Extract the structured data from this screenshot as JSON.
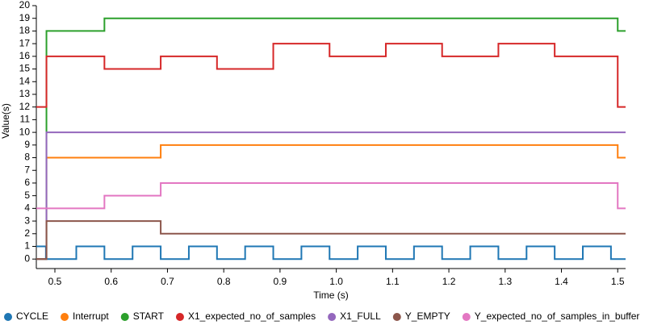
{
  "chart_data": {
    "type": "step",
    "xlabel": "Time (s)",
    "ylabel": "Value(s)",
    "xlim": [
      0.467,
      1.514
    ],
    "ylim": [
      -0.75,
      20
    ],
    "xticks": [
      0.5,
      0.6,
      0.7,
      0.8,
      0.9,
      {
        "value": 1,
        "label": "1.0"
      },
      1.1,
      1.2,
      1.3,
      1.4,
      1.5
    ],
    "yticks": [
      0,
      1,
      2,
      3,
      4,
      5,
      6,
      7,
      8,
      9,
      10,
      11,
      12,
      13,
      14,
      15,
      16,
      17,
      18,
      19,
      20
    ],
    "series": [
      {
        "name": "CYCLE",
        "color": "#1f77b4",
        "x": [
          0.467,
          0.484,
          0.538,
          0.588,
          0.638,
          0.688,
          0.738,
          0.788,
          0.838,
          0.888,
          0.938,
          0.988,
          1.038,
          1.088,
          1.138,
          1.188,
          1.238,
          1.288,
          1.338,
          1.388,
          1.438,
          1.488
        ],
        "values": [
          1,
          0,
          1,
          0,
          1,
          0,
          1,
          0,
          1,
          0,
          1,
          0,
          1,
          0,
          1,
          0,
          1,
          0,
          1,
          0,
          1,
          0
        ]
      },
      {
        "name": "Interrupt",
        "color": "#ff7f0e",
        "x": [
          0.467,
          0.485,
          0.688,
          1.5
        ],
        "values": [
          0,
          8,
          9,
          8
        ]
      },
      {
        "name": "START",
        "color": "#2ca02c",
        "x": [
          0.467,
          0.485,
          0.588,
          1.5
        ],
        "values": [
          0,
          18,
          19,
          18
        ]
      },
      {
        "name": "X1_expected_no_of_samples",
        "color": "#d62728",
        "x": [
          0.467,
          0.485,
          0.588,
          0.688,
          0.788,
          0.888,
          0.988,
          1.088,
          1.188,
          1.288,
          1.388,
          1.5
        ],
        "values": [
          12,
          16,
          15,
          16,
          15,
          17,
          16,
          17,
          16,
          17,
          16,
          12
        ]
      },
      {
        "name": "X1_FULL",
        "color": "#9467bd",
        "x": [
          0.467,
          0.485
        ],
        "values": [
          0,
          10
        ]
      },
      {
        "name": "Y_EMPTY",
        "color": "#8c564b",
        "x": [
          0.467,
          0.485,
          0.688
        ],
        "values": [
          0,
          3,
          2
        ]
      },
      {
        "name": "Y_expected_no_of_samples_in_buffer",
        "color": "#e377c2",
        "x": [
          0.467,
          0.588,
          0.688,
          1.5
        ],
        "values": [
          4,
          5,
          6,
          4
        ]
      }
    ]
  }
}
